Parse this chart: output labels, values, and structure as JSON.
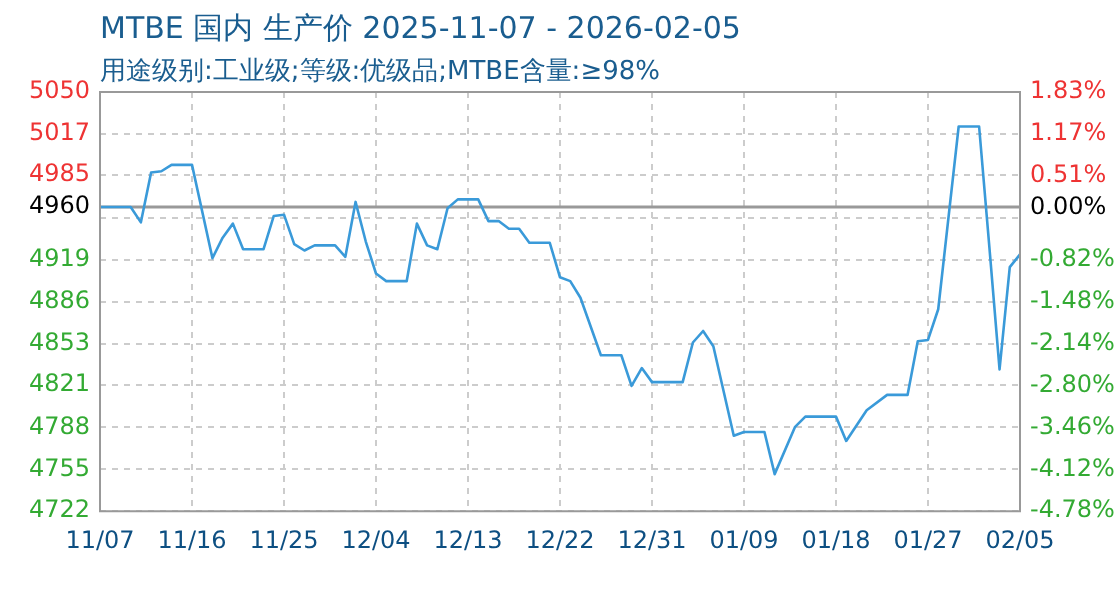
{
  "chart_data": {
    "type": "line",
    "title": "MTBE 国内 生产价 2025-11-07 - 2026-02-05",
    "subtitle": "用途级别:工业级;等级:优级品;MTBE含量:≥98%",
    "x": [
      "2025-11-07",
      "2025-11-10",
      "2025-11-11",
      "2025-11-12",
      "2025-11-13",
      "2025-11-14",
      "2025-11-16",
      "2025-11-18",
      "2025-11-19",
      "2025-11-20",
      "2025-11-21",
      "2025-11-23",
      "2025-11-24",
      "2025-11-25",
      "2025-11-26",
      "2025-11-27",
      "2025-11-28",
      "2025-11-30",
      "2025-12-01",
      "2025-12-02",
      "2025-12-03",
      "2025-12-04",
      "2025-12-05",
      "2025-12-07",
      "2025-12-08",
      "2025-12-09",
      "2025-12-10",
      "2025-12-11",
      "2025-12-12",
      "2025-12-14",
      "2025-12-15",
      "2025-12-16",
      "2025-12-17",
      "2025-12-18",
      "2025-12-19",
      "2025-12-21",
      "2025-12-22",
      "2025-12-23",
      "2025-12-24",
      "2025-12-26",
      "2025-12-28",
      "2025-12-29",
      "2025-12-30",
      "2025-12-31",
      "2026-01-03",
      "2026-01-04",
      "2026-01-05",
      "2026-01-06",
      "2026-01-08",
      "2026-01-09",
      "2026-01-11",
      "2026-01-12",
      "2026-01-14",
      "2026-01-15",
      "2026-01-18",
      "2026-01-19",
      "2026-01-21",
      "2026-01-23",
      "2026-01-25",
      "2026-01-26",
      "2026-01-27",
      "2026-01-28",
      "2026-01-30",
      "2026-02-01",
      "2026-02-02",
      "2026-02-03",
      "2026-02-04",
      "2026-02-05"
    ],
    "series": [
      {
        "color": "#3a9ad9",
        "values": [
          4960,
          4960,
          4948,
          4987,
          4988,
          4993,
          4993,
          4920,
          4936,
          4947,
          4927,
          4927,
          4953,
          4954,
          4931,
          4926,
          4930,
          4930,
          4921,
          4964,
          4933,
          4908,
          4902,
          4902,
          4947,
          4930,
          4927,
          4959,
          4966,
          4966,
          4949,
          4949,
          4943,
          4943,
          4932,
          4932,
          4905,
          4902,
          4889,
          4844,
          4844,
          4820,
          4834,
          4823,
          4823,
          4854,
          4863,
          4851,
          4781,
          4784,
          4784,
          4751,
          4788,
          4796,
          4796,
          4777,
          4801,
          4813,
          4813,
          4855,
          4856,
          4880,
          5023,
          5023,
          4929,
          4833,
          4913,
          4923
        ]
      }
    ],
    "xlim": [
      "2025-11-07",
      "2026-02-05"
    ],
    "xticks": [
      {
        "value": "2025-11-07",
        "label": "11/07"
      },
      {
        "value": "2025-11-16",
        "label": "11/16"
      },
      {
        "value": "2025-11-25",
        "label": "11/25"
      },
      {
        "value": "2025-12-04",
        "label": "12/04"
      },
      {
        "value": "2025-12-13",
        "label": "12/13"
      },
      {
        "value": "2025-12-22",
        "label": "12/22"
      },
      {
        "value": "2025-12-31",
        "label": "12/31"
      },
      {
        "value": "2026-01-09",
        "label": "01/09"
      },
      {
        "value": "2026-01-18",
        "label": "01/18"
      },
      {
        "value": "2026-01-27",
        "label": "01/27"
      },
      {
        "value": "2026-02-05",
        "label": "02/05"
      }
    ],
    "ylim": [
      4722,
      5050
    ],
    "yticks": [
      {
        "value": 5050,
        "label": "5050"
      },
      {
        "value": 5017.2,
        "label": "5017"
      },
      {
        "value": 4985,
        "label": "4985"
      },
      {
        "value": 4951.6,
        "label": null
      },
      {
        "value": 4918.8,
        "label": "4919"
      },
      {
        "value": 4886,
        "label": "4886"
      },
      {
        "value": 4853.2,
        "label": "4853"
      },
      {
        "value": 4821,
        "label": "4821"
      },
      {
        "value": 4787.6,
        "label": "4788"
      },
      {
        "value": 4754.8,
        "label": "4755"
      },
      {
        "value": 4722,
        "label": "4722"
      }
    ],
    "y2lim": [
      -4.78,
      1.83
    ],
    "y2ticks": [
      {
        "value": 1.83,
        "label": "1.83%"
      },
      {
        "value": 1.17,
        "label": "1.17%"
      },
      {
        "value": 0.51,
        "label": "0.51%"
      },
      {
        "value": 0,
        "label": "0.00%"
      },
      {
        "value": -0.82,
        "label": "-0.82%"
      },
      {
        "value": -1.48,
        "label": "-1.48%"
      },
      {
        "value": -2.14,
        "label": "-2.14%"
      },
      {
        "value": -2.8,
        "label": "-2.80%"
      },
      {
        "value": -3.46,
        "label": "-3.46%"
      },
      {
        "value": -4.12,
        "label": "-4.12%"
      },
      {
        "value": -4.78,
        "label": "-4.78%"
      }
    ],
    "ref_lines": [
      {
        "axis": "y",
        "value": 4960,
        "label": "4960",
        "color": "#999999"
      }
    ],
    "grid": true,
    "legend": false,
    "marker": "none",
    "line_style": "solid"
  }
}
